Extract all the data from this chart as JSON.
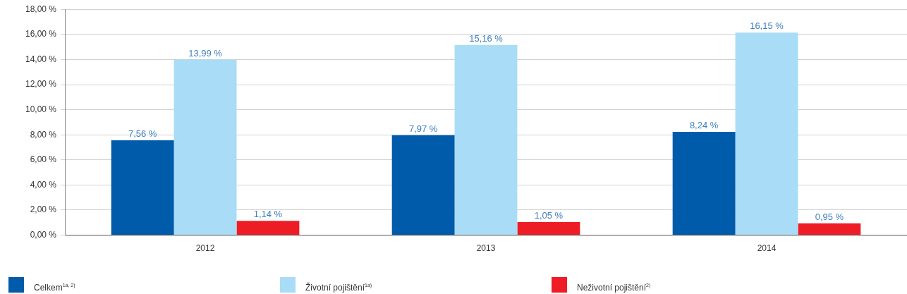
{
  "chart_data": {
    "type": "bar",
    "categories": [
      "2012",
      "2013",
      "2014"
    ],
    "series": [
      {
        "name": "Celkem$^{1a, 2)}$",
        "color": "#005bab",
        "values": [
          7.56,
          7.97,
          8.24
        ],
        "value_labels": [
          "7,56 %",
          "7,97 %",
          "8,24 %"
        ]
      },
      {
        "name": "Životní pojištění$^{1a)}$",
        "color": "#a8dcf7",
        "values": [
          13.99,
          15.16,
          16.15
        ],
        "value_labels": [
          "13,99 %",
          "15,16 %",
          "16,15 %"
        ]
      },
      {
        "name": "Neživotní pojištění$^{2)}$",
        "color": "#ee1c25",
        "values": [
          1.14,
          1.05,
          0.95
        ],
        "value_labels": [
          "1,14 %",
          "1,05 %",
          "0,95 %"
        ]
      }
    ],
    "ylim": [
      0,
      18
    ],
    "yticks": [
      {
        "value": 0,
        "label": "0,00 %"
      },
      {
        "value": 2,
        "label": "2,00 %"
      },
      {
        "value": 4,
        "label": "4,00 %"
      },
      {
        "value": 6,
        "label": "6,00 %"
      },
      {
        "value": 8,
        "label": "8,00 %"
      },
      {
        "value": 10,
        "label": "10,00 %"
      },
      {
        "value": 12,
        "label": "12,00 %"
      },
      {
        "value": 14,
        "label": "14,00 %"
      },
      {
        "value": 16,
        "label": "16,00 %"
      },
      {
        "value": 18,
        "label": "18,00 %"
      }
    ],
    "grid": "y",
    "legend": "bottom"
  }
}
